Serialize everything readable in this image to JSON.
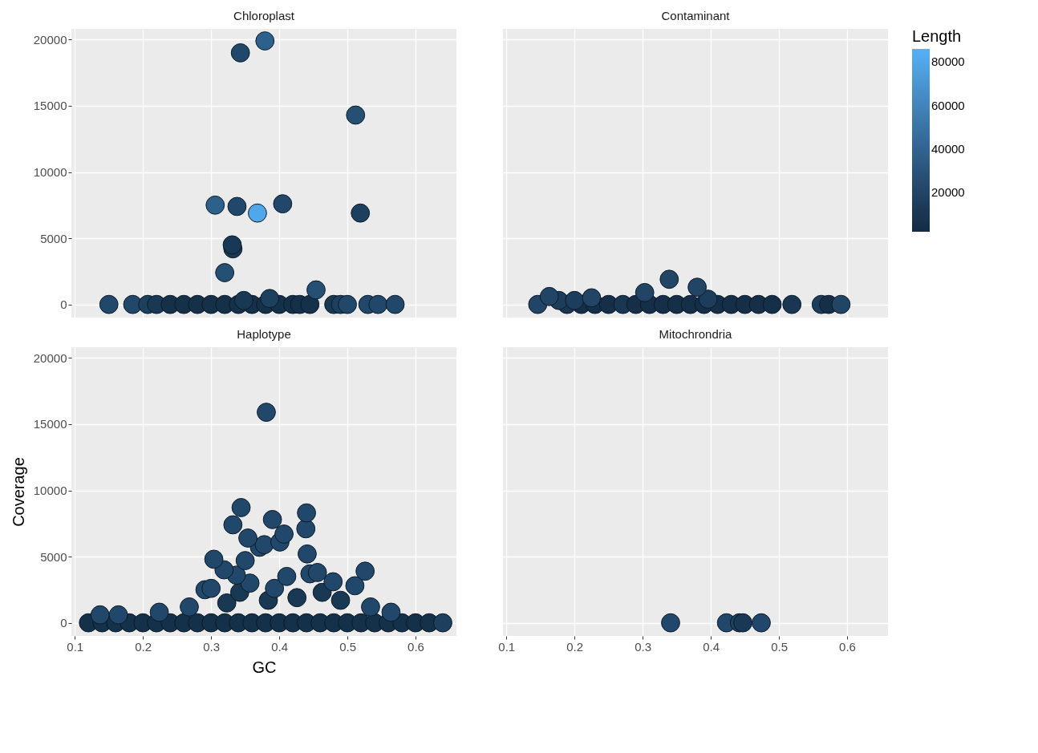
{
  "chart_data": [
    {
      "type": "scatter",
      "title": "Chloroplast",
      "tick_labels": "y",
      "grid": true,
      "marker": "circle",
      "xlim": [
        0.095,
        0.66
      ],
      "ylim": [
        -990,
        20810
      ],
      "xticks": [
        0.1,
        0.2,
        0.3,
        0.4,
        0.5,
        0.6
      ],
      "yticks": [
        0,
        5000,
        10000,
        15000,
        20000
      ],
      "x": [
        0.15,
        0.185,
        0.207,
        0.22,
        0.24,
        0.26,
        0.28,
        0.3,
        0.32,
        0.34,
        0.36,
        0.38,
        0.4,
        0.42,
        0.43,
        0.445,
        0.48,
        0.49,
        0.5,
        0.53,
        0.545,
        0.57,
        0.348,
        0.386,
        0.454,
        0.32,
        0.332,
        0.331,
        0.368,
        0.519,
        0.338,
        0.306,
        0.405,
        0.512,
        0.343,
        0.379
      ],
      "values": [
        0,
        0,
        0,
        0,
        0,
        0,
        0,
        0,
        0,
        0,
        0,
        0,
        0,
        0,
        0,
        0,
        0,
        0,
        0,
        0,
        0,
        0,
        300,
        450,
        1100,
        2400,
        4200,
        4500,
        6900,
        6900,
        7400,
        7500,
        7600,
        14300,
        19000,
        19900
      ],
      "colors": [
        "#21486a",
        "#21486a",
        "#1d405f",
        "#193854",
        "#153049",
        "#153049",
        "#153049",
        "#153049",
        "#153049",
        "#153049",
        "#153049",
        "#153049",
        "#153049",
        "#153049",
        "#153049",
        "#153049",
        "#193854",
        "#1d405f",
        "#21486a",
        "#21486a",
        "#21486a",
        "#21486a",
        "#193854",
        "#1d405f",
        "#255074",
        "#255074",
        "#193854",
        "#193854",
        "#51a7ea",
        "#1d405f",
        "#21486a",
        "#2d608a",
        "#21486a",
        "#255074",
        "#21486a",
        "#2d608a"
      ]
    },
    {
      "type": "scatter",
      "title": "Contaminant",
      "tick_labels": false,
      "grid": true,
      "marker": "circle",
      "clabel": "Length",
      "xlim": [
        0.095,
        0.66
      ],
      "ylim": [
        -990,
        20810
      ],
      "xticks": [
        0.1,
        0.2,
        0.3,
        0.4,
        0.5,
        0.6
      ],
      "yticks": [
        0,
        5000,
        10000,
        15000,
        20000
      ],
      "clim": [
        2000,
        86000
      ],
      "cticks": [
        20000,
        40000,
        60000,
        80000
      ],
      "x": [
        0.146,
        0.189,
        0.21,
        0.23,
        0.25,
        0.271,
        0.29,
        0.31,
        0.33,
        0.35,
        0.37,
        0.39,
        0.41,
        0.43,
        0.45,
        0.47,
        0.49,
        0.519,
        0.562,
        0.573,
        0.591,
        0.177,
        0.2,
        0.396,
        0.225,
        0.163,
        0.303,
        0.38,
        0.339
      ],
      "values": [
        0,
        0,
        0,
        0,
        0,
        0,
        0,
        0,
        0,
        0,
        0,
        0,
        0,
        0,
        0,
        0,
        0,
        0,
        0,
        0,
        0,
        300,
        300,
        400,
        500,
        600,
        900,
        1300,
        1900
      ],
      "cvalues": [
        20000,
        10000,
        5000,
        5000,
        5000,
        10000,
        5000,
        5000,
        5000,
        5000,
        5000,
        5000,
        5000,
        5000,
        5000,
        5000,
        5000,
        10000,
        15000,
        5000,
        20000,
        15000,
        15000,
        15000,
        20000,
        20000,
        20000,
        20000,
        20000
      ]
    },
    {
      "type": "scatter",
      "title": "Haplotype",
      "xlabel": "GC",
      "ylabel": "Coverage",
      "grid": true,
      "marker": "circle",
      "xlim": [
        0.095,
        0.66
      ],
      "ylim": [
        -990,
        20810
      ],
      "xticks": [
        0.1,
        0.2,
        0.3,
        0.4,
        0.5,
        0.6
      ],
      "yticks": [
        0,
        5000,
        10000,
        15000,
        20000
      ],
      "x": [
        0.12,
        0.14,
        0.16,
        0.18,
        0.2,
        0.22,
        0.24,
        0.26,
        0.28,
        0.3,
        0.32,
        0.34,
        0.36,
        0.38,
        0.4,
        0.42,
        0.44,
        0.46,
        0.48,
        0.5,
        0.52,
        0.54,
        0.56,
        0.58,
        0.6,
        0.62,
        0.64,
        0.137,
        0.164,
        0.224,
        0.564,
        0.268,
        0.534,
        0.323,
        0.426,
        0.49,
        0.342,
        0.463,
        0.384,
        0.291,
        0.3,
        0.393,
        0.511,
        0.357,
        0.479,
        0.411,
        0.337,
        0.445,
        0.456,
        0.526,
        0.319,
        0.35,
        0.304,
        0.441,
        0.371,
        0.378,
        0.401,
        0.354,
        0.407,
        0.439,
        0.332,
        0.39,
        0.44,
        0.344,
        0.381
      ],
      "values": [
        0,
        0,
        0,
        0,
        0,
        0,
        0,
        0,
        0,
        0,
        0,
        0,
        0,
        0,
        0,
        0,
        0,
        0,
        0,
        0,
        0,
        0,
        0,
        0,
        0,
        0,
        0,
        600,
        600,
        800,
        800,
        1200,
        1200,
        1500,
        1900,
        1700,
        2300,
        2300,
        1700,
        2500,
        2600,
        2600,
        2800,
        3000,
        3100,
        3500,
        3600,
        3700,
        3800,
        3900,
        4000,
        4700,
        4800,
        5200,
        5700,
        5900,
        6100,
        6400,
        6700,
        7100,
        7400,
        7800,
        8300,
        8700,
        15900
      ],
      "colors": [
        "#153049",
        "#153049",
        "#153049",
        "#153049",
        "#153049",
        "#153049",
        "#153049",
        "#153049",
        "#153049",
        "#153049",
        "#153049",
        "#153049",
        "#153049",
        "#153049",
        "#153049",
        "#153049",
        "#153049",
        "#153049",
        "#153049",
        "#153049",
        "#153049",
        "#153049",
        "#153049",
        "#153049",
        "#153049",
        "#153049",
        "#1d405f",
        "#21486a",
        "#21486a",
        "#21486a",
        "#21486a",
        "#21486a",
        "#21486a",
        "#193854",
        "#193854",
        "#193854",
        "#193854",
        "#193854",
        "#193854",
        "#21486a",
        "#21486a",
        "#21486a",
        "#21486a",
        "#21486a",
        "#21486a",
        "#21486a",
        "#21486a",
        "#21486a",
        "#21486a",
        "#21486a",
        "#21486a",
        "#21486a",
        "#21486a",
        "#21486a",
        "#21486a",
        "#21486a",
        "#21486a",
        "#21486a",
        "#21486a",
        "#21486a",
        "#21486a",
        "#21486a",
        "#21486a",
        "#21486a",
        "#21486a"
      ]
    },
    {
      "type": "scatter",
      "title": "Mitochrondria",
      "tick_labels": "x",
      "grid": true,
      "marker": "circle",
      "xlim": [
        0.095,
        0.66
      ],
      "ylim": [
        -990,
        20810
      ],
      "xticks": [
        0.1,
        0.2,
        0.3,
        0.4,
        0.5,
        0.6
      ],
      "yticks": [
        0,
        5000,
        10000,
        15000,
        20000
      ],
      "x": [
        0.341,
        0.423,
        0.442,
        0.447,
        0.474
      ],
      "values": [
        0,
        0,
        0,
        0,
        0
      ],
      "colors": [
        "#21486a",
        "#21486a",
        "#1d405f",
        "#193854",
        "#21486a"
      ]
    }
  ]
}
